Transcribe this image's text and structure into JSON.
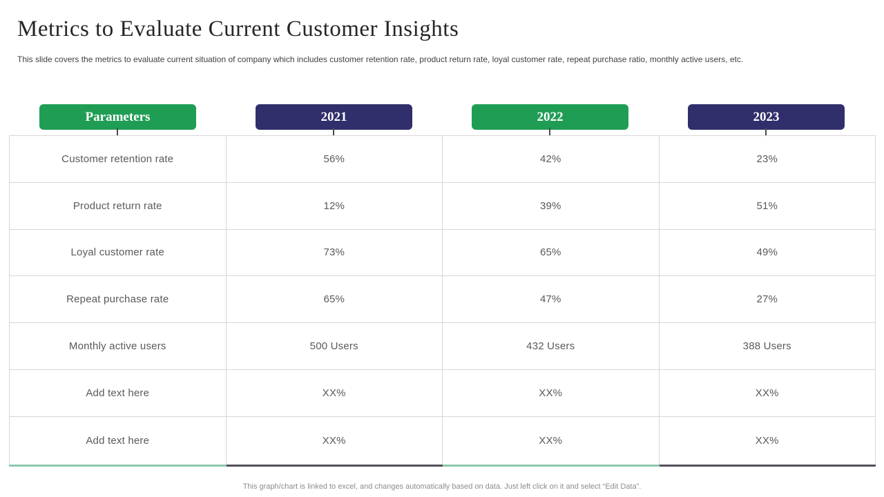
{
  "header": {
    "title": "Metrics to Evaluate Current Customer Insights",
    "subtitle": "This slide covers the metrics to evaluate current situation of company which includes customer retention rate, product return rate, loyal customer rate, repeat purchase ratio, monthly active users, etc."
  },
  "colors": {
    "header_green": "#1f9d55",
    "header_navy": "#302e6b",
    "table_border": "#d6d6d6",
    "bottom_edge_green": "#8cc7ab",
    "bottom_edge_dark": "#50505a",
    "body_text": "#595959"
  },
  "table": {
    "columns": [
      {
        "label": "Parameters",
        "color": "#1f9d55"
      },
      {
        "label": "2021",
        "color": "#302e6b"
      },
      {
        "label": "2022",
        "color": "#1f9d55"
      },
      {
        "label": "2023",
        "color": "#302e6b"
      }
    ],
    "rows": [
      {
        "cells": [
          "Customer retention rate",
          "56%",
          "42%",
          "23%"
        ]
      },
      {
        "cells": [
          "Product return rate",
          "12%",
          "39%",
          "51%"
        ]
      },
      {
        "cells": [
          "Loyal customer rate",
          "73%",
          "65%",
          "49%"
        ]
      },
      {
        "cells": [
          "Repeat purchase rate",
          "65%",
          "47%",
          "27%"
        ]
      },
      {
        "cells": [
          "Monthly active users",
          "500 Users",
          "432 Users",
          "388 Users"
        ]
      },
      {
        "cells": [
          "Add text here",
          "XX%",
          "XX%",
          "XX%"
        ]
      },
      {
        "cells": [
          "Add text here",
          "XX%",
          "XX%",
          "XX%"
        ]
      }
    ]
  },
  "footer": {
    "note": "This graph/chart is linked to excel, and changes automatically based on data. Just left click on it and select “Edit Data”."
  }
}
